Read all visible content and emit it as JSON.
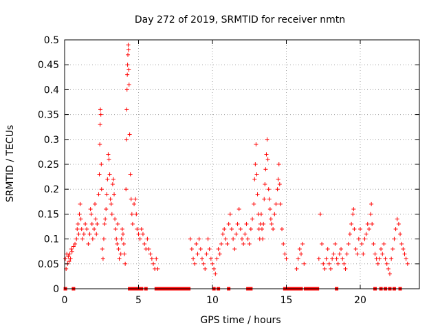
{
  "chart_data": {
    "type": "scatter",
    "title": "Day 272 of 2019, SRMTID for receiver nmtn",
    "xlabel": "GPS time / hours",
    "ylabel": "SRMTID / TECUs",
    "xlim": [
      0,
      24
    ],
    "ylim": [
      0,
      0.5
    ],
    "x_ticks": [
      0,
      5,
      10,
      15,
      20
    ],
    "x_tick_labels": [
      "0",
      "5",
      "10",
      "15",
      "20"
    ],
    "y_ticks": [
      0,
      0.05,
      0.1,
      0.15,
      0.2,
      0.25,
      0.3,
      0.35,
      0.4,
      0.45,
      0.5
    ],
    "y_tick_labels": [
      "0",
      "0.05",
      "0.1",
      "0.15",
      "0.2",
      "0.25",
      "0.3",
      "0.35",
      "0.4",
      "0.45",
      "0.5"
    ],
    "grid": true,
    "series": [
      {
        "name": "SRMTID",
        "color": "#ff0000",
        "marker": "plus",
        "points": [
          [
            0.05,
            0.06
          ],
          [
            0.1,
            0.04
          ],
          [
            0.15,
            0.07
          ],
          [
            0.2,
            0.05
          ],
          [
            0.25,
            0.065
          ],
          [
            0.3,
            0.055
          ],
          [
            0.35,
            0.07
          ],
          [
            0.4,
            0.06
          ],
          [
            0.45,
            0.08
          ],
          [
            0.5,
            0.075
          ],
          [
            0.6,
            0.085
          ],
          [
            0.7,
            0.09
          ],
          [
            0.8,
            0.1
          ],
          [
            0.85,
            0.12
          ],
          [
            0.9,
            0.13
          ],
          [
            0.95,
            0.11
          ],
          [
            1.0,
            0.15
          ],
          [
            1.05,
            0.17
          ],
          [
            1.1,
            0.14
          ],
          [
            1.15,
            0.12
          ],
          [
            1.2,
            0.1
          ],
          [
            1.3,
            0.11
          ],
          [
            1.4,
            0.13
          ],
          [
            1.5,
            0.12
          ],
          [
            1.6,
            0.09
          ],
          [
            1.7,
            0.11
          ],
          [
            1.75,
            0.16
          ],
          [
            1.8,
            0.15
          ],
          [
            1.85,
            0.13
          ],
          [
            1.9,
            0.1
          ],
          [
            2.0,
            0.12
          ],
          [
            2.05,
            0.17
          ],
          [
            2.1,
            0.14
          ],
          [
            2.15,
            0.11
          ],
          [
            2.2,
            0.13
          ],
          [
            2.3,
            0.19
          ],
          [
            2.35,
            0.23
          ],
          [
            2.38,
            0.29
          ],
          [
            2.4,
            0.33
          ],
          [
            2.42,
            0.36
          ],
          [
            2.45,
            0.35
          ],
          [
            2.48,
            0.25
          ],
          [
            2.5,
            0.2
          ],
          [
            2.55,
            0.08
          ],
          [
            2.6,
            0.06
          ],
          [
            2.65,
            0.1
          ],
          [
            2.7,
            0.13
          ],
          [
            2.75,
            0.14
          ],
          [
            2.8,
            0.16
          ],
          [
            2.85,
            0.19
          ],
          [
            2.9,
            0.22
          ],
          [
            2.95,
            0.27
          ],
          [
            3.0,
            0.26
          ],
          [
            3.05,
            0.23
          ],
          [
            3.1,
            0.18
          ],
          [
            3.15,
            0.17
          ],
          [
            3.2,
            0.15
          ],
          [
            3.25,
            0.21
          ],
          [
            3.3,
            0.22
          ],
          [
            3.35,
            0.19
          ],
          [
            3.4,
            0.14
          ],
          [
            3.45,
            0.12
          ],
          [
            3.5,
            0.1
          ],
          [
            3.55,
            0.09
          ],
          [
            3.6,
            0.13
          ],
          [
            3.65,
            0.08
          ],
          [
            3.7,
            0.06
          ],
          [
            3.8,
            0.07
          ],
          [
            3.85,
            0.1
          ],
          [
            3.9,
            0.12
          ],
          [
            3.95,
            0.11
          ],
          [
            4.0,
            0.09
          ],
          [
            4.05,
            0.07
          ],
          [
            4.1,
            0.05
          ],
          [
            4.15,
            0.2
          ],
          [
            4.18,
            0.3
          ],
          [
            4.2,
            0.36
          ],
          [
            4.22,
            0.4
          ],
          [
            4.24,
            0.43
          ],
          [
            4.26,
            0.45
          ],
          [
            4.28,
            0.47
          ],
          [
            4.3,
            0.49
          ],
          [
            4.32,
            0.48
          ],
          [
            4.34,
            0.44
          ],
          [
            4.36,
            0.41
          ],
          [
            4.4,
            0.31
          ],
          [
            4.45,
            0.23
          ],
          [
            4.5,
            0.18
          ],
          [
            4.55,
            0.15
          ],
          [
            4.6,
            0.13
          ],
          [
            4.7,
            0.17
          ],
          [
            4.8,
            0.18
          ],
          [
            4.85,
            0.15
          ],
          [
            4.9,
            0.12
          ],
          [
            5.0,
            0.11
          ],
          [
            5.1,
            0.1
          ],
          [
            5.2,
            0.12
          ],
          [
            5.3,
            0.11
          ],
          [
            5.4,
            0.09
          ],
          [
            5.5,
            0.08
          ],
          [
            5.6,
            0.1
          ],
          [
            5.7,
            0.08
          ],
          [
            5.8,
            0.07
          ],
          [
            5.9,
            0.06
          ],
          [
            6.0,
            0.05
          ],
          [
            6.1,
            0.04
          ],
          [
            6.2,
            0.06
          ],
          [
            6.3,
            0.04
          ],
          [
            8.5,
            0.1
          ],
          [
            8.6,
            0.08
          ],
          [
            8.7,
            0.06
          ],
          [
            8.8,
            0.05
          ],
          [
            8.9,
            0.09
          ],
          [
            9.0,
            0.07
          ],
          [
            9.1,
            0.1
          ],
          [
            9.2,
            0.08
          ],
          [
            9.3,
            0.06
          ],
          [
            9.4,
            0.05
          ],
          [
            9.5,
            0.04
          ],
          [
            9.6,
            0.07
          ],
          [
            9.7,
            0.1
          ],
          [
            9.8,
            0.08
          ],
          [
            9.9,
            0.06
          ],
          [
            10.0,
            0.05
          ],
          [
            10.1,
            0.04
          ],
          [
            10.2,
            0.03
          ],
          [
            10.3,
            0.06
          ],
          [
            10.4,
            0.08
          ],
          [
            10.5,
            0.07
          ],
          [
            10.6,
            0.09
          ],
          [
            10.7,
            0.11
          ],
          [
            10.8,
            0.12
          ],
          [
            10.9,
            0.1
          ],
          [
            11.0,
            0.09
          ],
          [
            11.1,
            0.13
          ],
          [
            11.2,
            0.15
          ],
          [
            11.3,
            0.12
          ],
          [
            11.4,
            0.1
          ],
          [
            11.5,
            0.08
          ],
          [
            11.6,
            0.11
          ],
          [
            11.7,
            0.13
          ],
          [
            11.8,
            0.16
          ],
          [
            11.9,
            0.12
          ],
          [
            12.0,
            0.1
          ],
          [
            12.1,
            0.09
          ],
          [
            12.2,
            0.11
          ],
          [
            12.3,
            0.13
          ],
          [
            12.4,
            0.1
          ],
          [
            12.5,
            0.09
          ],
          [
            12.6,
            0.12
          ],
          [
            12.7,
            0.14
          ],
          [
            12.8,
            0.17
          ],
          [
            12.85,
            0.22
          ],
          [
            12.9,
            0.25
          ],
          [
            12.95,
            0.29
          ],
          [
            13.0,
            0.23
          ],
          [
            13.05,
            0.19
          ],
          [
            13.1,
            0.15
          ],
          [
            13.15,
            0.12
          ],
          [
            13.2,
            0.1
          ],
          [
            13.25,
            0.13
          ],
          [
            13.3,
            0.15
          ],
          [
            13.35,
            0.12
          ],
          [
            13.4,
            0.1
          ],
          [
            13.45,
            0.13
          ],
          [
            13.5,
            0.18
          ],
          [
            13.55,
            0.21
          ],
          [
            13.6,
            0.24
          ],
          [
            13.65,
            0.27
          ],
          [
            13.7,
            0.3
          ],
          [
            13.75,
            0.26
          ],
          [
            13.8,
            0.2
          ],
          [
            13.85,
            0.18
          ],
          [
            13.9,
            0.16
          ],
          [
            13.95,
            0.14
          ],
          [
            14.0,
            0.13
          ],
          [
            14.1,
            0.12
          ],
          [
            14.2,
            0.15
          ],
          [
            14.3,
            0.17
          ],
          [
            14.4,
            0.2
          ],
          [
            14.45,
            0.22
          ],
          [
            14.5,
            0.25
          ],
          [
            14.55,
            0.21
          ],
          [
            14.6,
            0.17
          ],
          [
            14.7,
            0.12
          ],
          [
            14.8,
            0.09
          ],
          [
            14.9,
            0.07
          ],
          [
            15.0,
            0.06
          ],
          [
            15.7,
            0.04
          ],
          [
            15.8,
            0.06
          ],
          [
            15.9,
            0.08
          ],
          [
            16.0,
            0.07
          ],
          [
            16.1,
            0.09
          ],
          [
            16.2,
            0.05
          ],
          [
            17.2,
            0.06
          ],
          [
            17.3,
            0.15
          ],
          [
            17.4,
            0.09
          ],
          [
            17.5,
            0.05
          ],
          [
            17.6,
            0.04
          ],
          [
            17.7,
            0.06
          ],
          [
            17.8,
            0.08
          ],
          [
            17.9,
            0.05
          ],
          [
            18.0,
            0.04
          ],
          [
            18.1,
            0.06
          ],
          [
            18.2,
            0.07
          ],
          [
            18.3,
            0.09
          ],
          [
            18.4,
            0.06
          ],
          [
            18.5,
            0.05
          ],
          [
            18.6,
            0.07
          ],
          [
            18.7,
            0.08
          ],
          [
            18.8,
            0.06
          ],
          [
            18.9,
            0.05
          ],
          [
            19.0,
            0.04
          ],
          [
            19.1,
            0.07
          ],
          [
            19.2,
            0.09
          ],
          [
            19.3,
            0.11
          ],
          [
            19.4,
            0.13
          ],
          [
            19.5,
            0.15
          ],
          [
            19.55,
            0.16
          ],
          [
            19.6,
            0.12
          ],
          [
            19.7,
            0.08
          ],
          [
            19.8,
            0.07
          ],
          [
            19.9,
            0.1
          ],
          [
            20.0,
            0.12
          ],
          [
            20.1,
            0.09
          ],
          [
            20.2,
            0.07
          ],
          [
            20.3,
            0.1
          ],
          [
            20.4,
            0.11
          ],
          [
            20.5,
            0.13
          ],
          [
            20.6,
            0.12
          ],
          [
            20.7,
            0.15
          ],
          [
            20.75,
            0.17
          ],
          [
            20.8,
            0.13
          ],
          [
            20.9,
            0.09
          ],
          [
            21.0,
            0.07
          ],
          [
            21.1,
            0.06
          ],
          [
            21.2,
            0.05
          ],
          [
            21.3,
            0.06
          ],
          [
            21.4,
            0.08
          ],
          [
            21.5,
            0.07
          ],
          [
            21.6,
            0.09
          ],
          [
            21.7,
            0.06
          ],
          [
            21.8,
            0.05
          ],
          [
            21.9,
            0.04
          ],
          [
            22.0,
            0.03
          ],
          [
            22.1,
            0.06
          ],
          [
            22.2,
            0.08
          ],
          [
            22.3,
            0.1
          ],
          [
            22.4,
            0.12
          ],
          [
            22.5,
            0.14
          ],
          [
            22.6,
            0.13
          ],
          [
            22.7,
            0.11
          ],
          [
            22.8,
            0.09
          ],
          [
            22.9,
            0.08
          ],
          [
            23.0,
            0.07
          ],
          [
            23.1,
            0.06
          ],
          [
            23.2,
            0.05
          ]
        ]
      }
    ],
    "zero_markers": {
      "name": "zero values",
      "color": "#ff0000",
      "marker": "square",
      "y": 0,
      "x": [
        0.05,
        0.6,
        4.4,
        4.6,
        4.8,
        5.0,
        5.2,
        5.5,
        6.2,
        6.4,
        6.6,
        6.8,
        7.0,
        7.2,
        7.4,
        7.6,
        7.8,
        8.0,
        8.2,
        8.4,
        10.1,
        10.4,
        11.1,
        12.4,
        12.6,
        14.9,
        15.0,
        15.2,
        15.4,
        15.6,
        15.8,
        16.0,
        16.3,
        16.5,
        16.7,
        16.9,
        17.1,
        18.4,
        21.0,
        21.4,
        21.7,
        22.0,
        22.3,
        22.7
      ]
    }
  }
}
